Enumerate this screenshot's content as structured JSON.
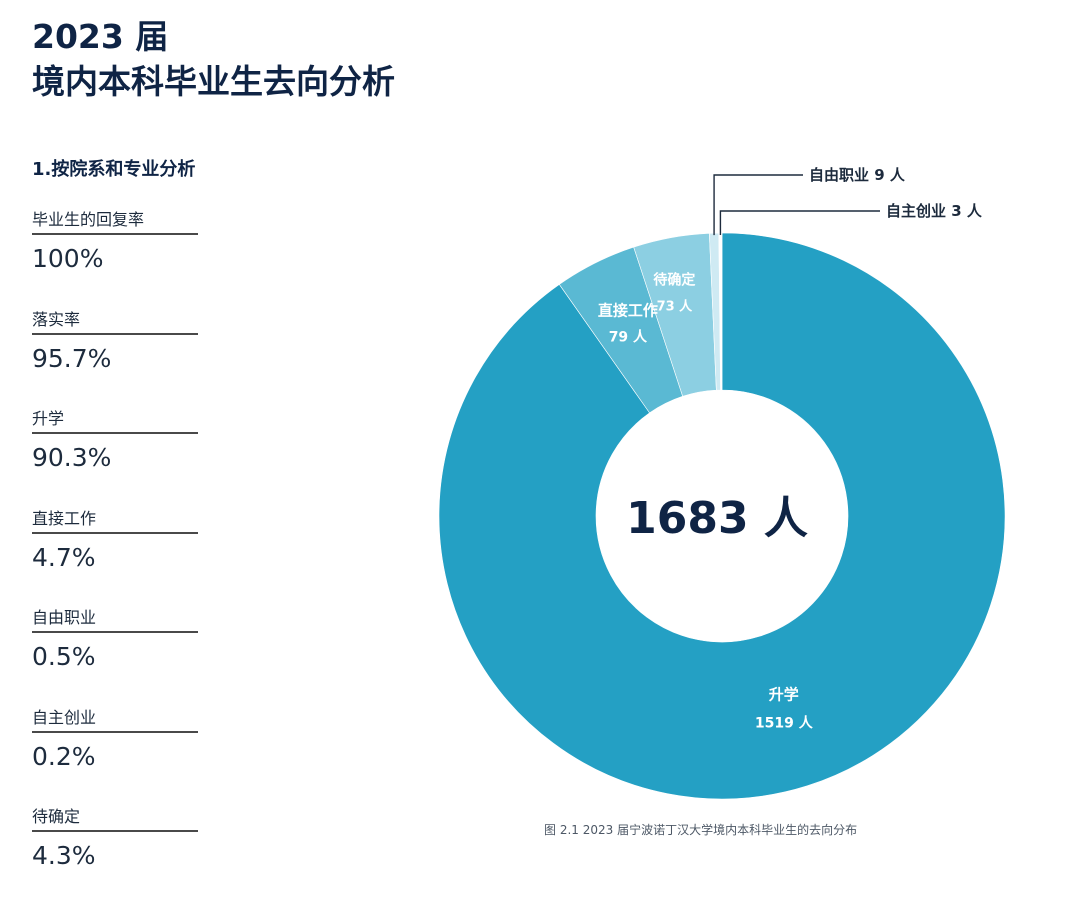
{
  "header": {
    "title_line1": "2023 届",
    "title_line2": "境内本科毕业生去向分析"
  },
  "section_heading": "1.按院系和专业分析",
  "stats": [
    {
      "label": "毕业生的回复率",
      "value": "100%"
    },
    {
      "label": "落实率",
      "value": "95.7%"
    },
    {
      "label": "升学",
      "value": "90.3%"
    },
    {
      "label": "直接工作",
      "value": "4.7%"
    },
    {
      "label": "自由职业",
      "value": "0.5%"
    },
    {
      "label": "自主创业",
      "value": "0.2%"
    },
    {
      "label": "待确定",
      "value": "4.3%"
    }
  ],
  "chart_data": {
    "type": "pie",
    "variant": "donut",
    "center_label": "1683 人",
    "slices": [
      {
        "name": "升学",
        "value": 1519,
        "value_label": "1519 人",
        "color": "#24a0c4",
        "label_placement": "inside"
      },
      {
        "name": "直接工作",
        "value": 79,
        "value_label": "79 人",
        "color": "#5ab9d3",
        "label_placement": "inside"
      },
      {
        "name": "待确定",
        "value": 73,
        "value_label": "73 人",
        "color": "#8ccfe2",
        "label_placement": "inside"
      },
      {
        "name": "自由职业",
        "value": 9,
        "value_label": "9 人",
        "color": "#cfeaf3",
        "label_placement": "outside"
      },
      {
        "name": "自主创业",
        "value": 3,
        "value_label": "3 人",
        "color": "#ffffff",
        "label_placement": "outside"
      }
    ],
    "caption": "图 2.1 2023 届宁波诺丁汉大学境内本科毕业生的去向分布"
  },
  "colors": {
    "title": "#0f2445",
    "callout_line": "#1d2b3d"
  }
}
